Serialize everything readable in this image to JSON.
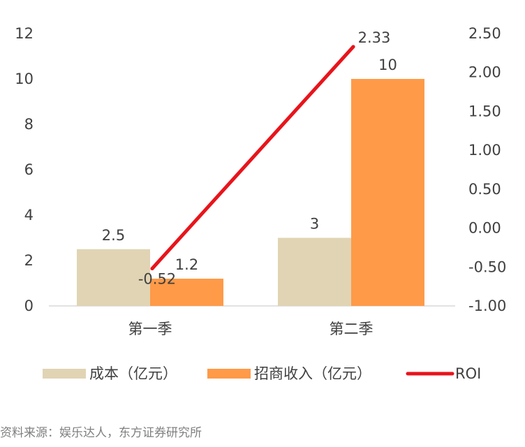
{
  "chart_data": {
    "type": "bar",
    "categories": [
      "第一季",
      "第二季"
    ],
    "series": [
      {
        "name": "成本（亿元）",
        "type": "bar",
        "axis": "left",
        "color": "#e0d4b4",
        "values": [
          2.5,
          3
        ]
      },
      {
        "name": "招商收入（亿元）",
        "type": "bar",
        "axis": "left",
        "color": "#ff9a48",
        "values": [
          1.2,
          10
        ]
      },
      {
        "name": "ROI",
        "type": "line",
        "axis": "right",
        "color": "#e8141b",
        "values": [
          -0.52,
          2.33
        ]
      }
    ],
    "data_labels": {
      "成本（亿元）": [
        "2.5",
        "3"
      ],
      "招商收入（亿元）": [
        "1.2",
        "10"
      ],
      "ROI": [
        "-0.52",
        "2.33"
      ]
    },
    "y_left": {
      "min": 0,
      "max": 12,
      "step": 2,
      "ticks": [
        "0",
        "2",
        "4",
        "6",
        "8",
        "10",
        "12"
      ]
    },
    "y_right": {
      "min": -1.0,
      "max": 2.5,
      "step": 0.5,
      "ticks": [
        "-1.00",
        "-0.50",
        "0.00",
        "0.50",
        "1.00",
        "1.50",
        "2.00",
        "2.50"
      ]
    },
    "legend_position": "bottom",
    "legend": [
      "成本（亿元）",
      "招商收入（亿元）",
      "ROI"
    ],
    "grid": false
  },
  "source": "资料来源：娱乐达人，东方证券研究所"
}
